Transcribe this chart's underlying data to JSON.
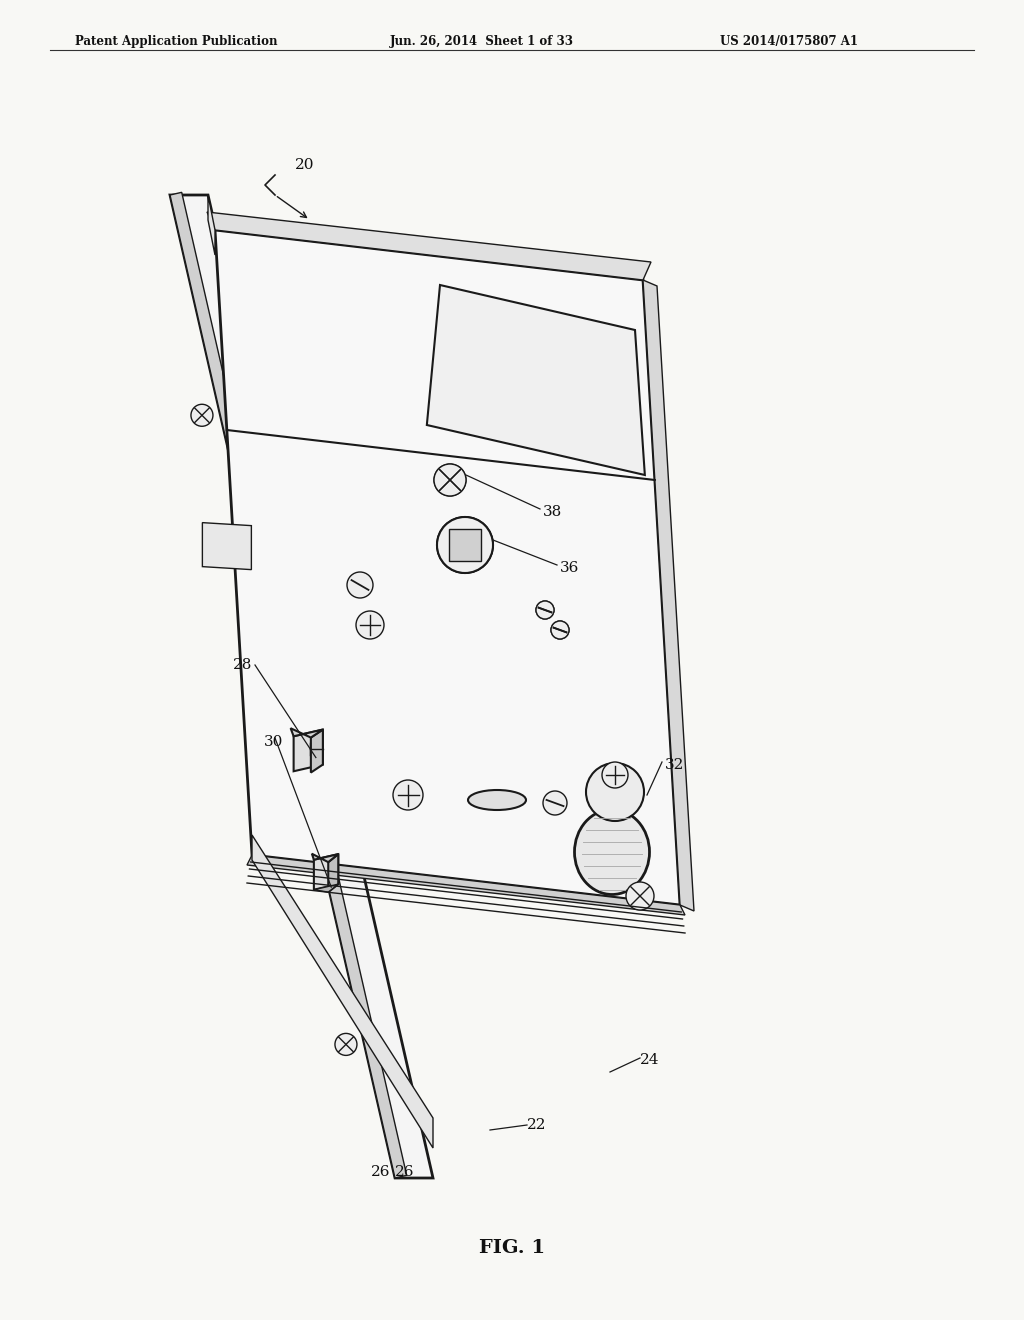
{
  "bg_color": "#ffffff",
  "paper_color": "#f8f8f5",
  "header_left": "Patent Application Publication",
  "header_center": "Jun. 26, 2014  Sheet 1 of 33",
  "header_right": "US 2014/0175807 A1",
  "fig_label": "FIG. 1",
  "line_color": "#1a1a1a",
  "fill_white": "#ffffff",
  "fill_light": "#f0f0f0",
  "fill_mid": "#e0e0e0",
  "fill_dark": "#c8c8c8"
}
